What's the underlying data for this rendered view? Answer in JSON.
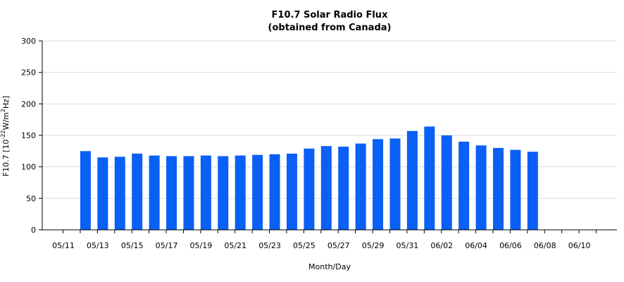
{
  "chart_data": {
    "type": "bar",
    "title": "F10.7 Solar Radio Flux",
    "subtitle": "(obtained from Canada)",
    "xlabel": "Month/Day",
    "ylabel": {
      "prefix": "F10.7 [10",
      "exp1": "-22",
      "mid": "W/m",
      "exp2": "2",
      "suffix": "Hz]"
    },
    "ylim": [
      0,
      300
    ],
    "yticks": [
      "0",
      "50",
      "100",
      "150",
      "200",
      "250",
      "300"
    ],
    "grid": true,
    "colors": {
      "bar": "#0a5ff5",
      "grid": "#dddddd",
      "axis": "#000000"
    },
    "categories": [
      "05/11",
      "05/12",
      "05/13",
      "05/14",
      "05/15",
      "05/16",
      "05/17",
      "05/18",
      "05/19",
      "05/20",
      "05/21",
      "05/22",
      "05/23",
      "05/24",
      "05/25",
      "05/26",
      "05/27",
      "05/28",
      "05/29",
      "05/30",
      "05/31",
      "06/01",
      "06/02",
      "06/03",
      "06/04",
      "06/05",
      "06/06",
      "06/07",
      "06/08",
      "06/09",
      "06/10",
      "06/11"
    ],
    "values": [
      null,
      125,
      115,
      116,
      121,
      118,
      117,
      117,
      118,
      117,
      118,
      119,
      120,
      121,
      129,
      133,
      132,
      137,
      144,
      145,
      157,
      164,
      150,
      140,
      134,
      130,
      127,
      124,
      null,
      null,
      null,
      null
    ],
    "xtick_labels": [
      "05/11",
      "05/13",
      "05/15",
      "05/17",
      "05/19",
      "05/21",
      "05/23",
      "05/25",
      "05/27",
      "05/29",
      "05/31",
      "06/02",
      "06/04",
      "06/06",
      "06/08",
      "06/10"
    ]
  }
}
